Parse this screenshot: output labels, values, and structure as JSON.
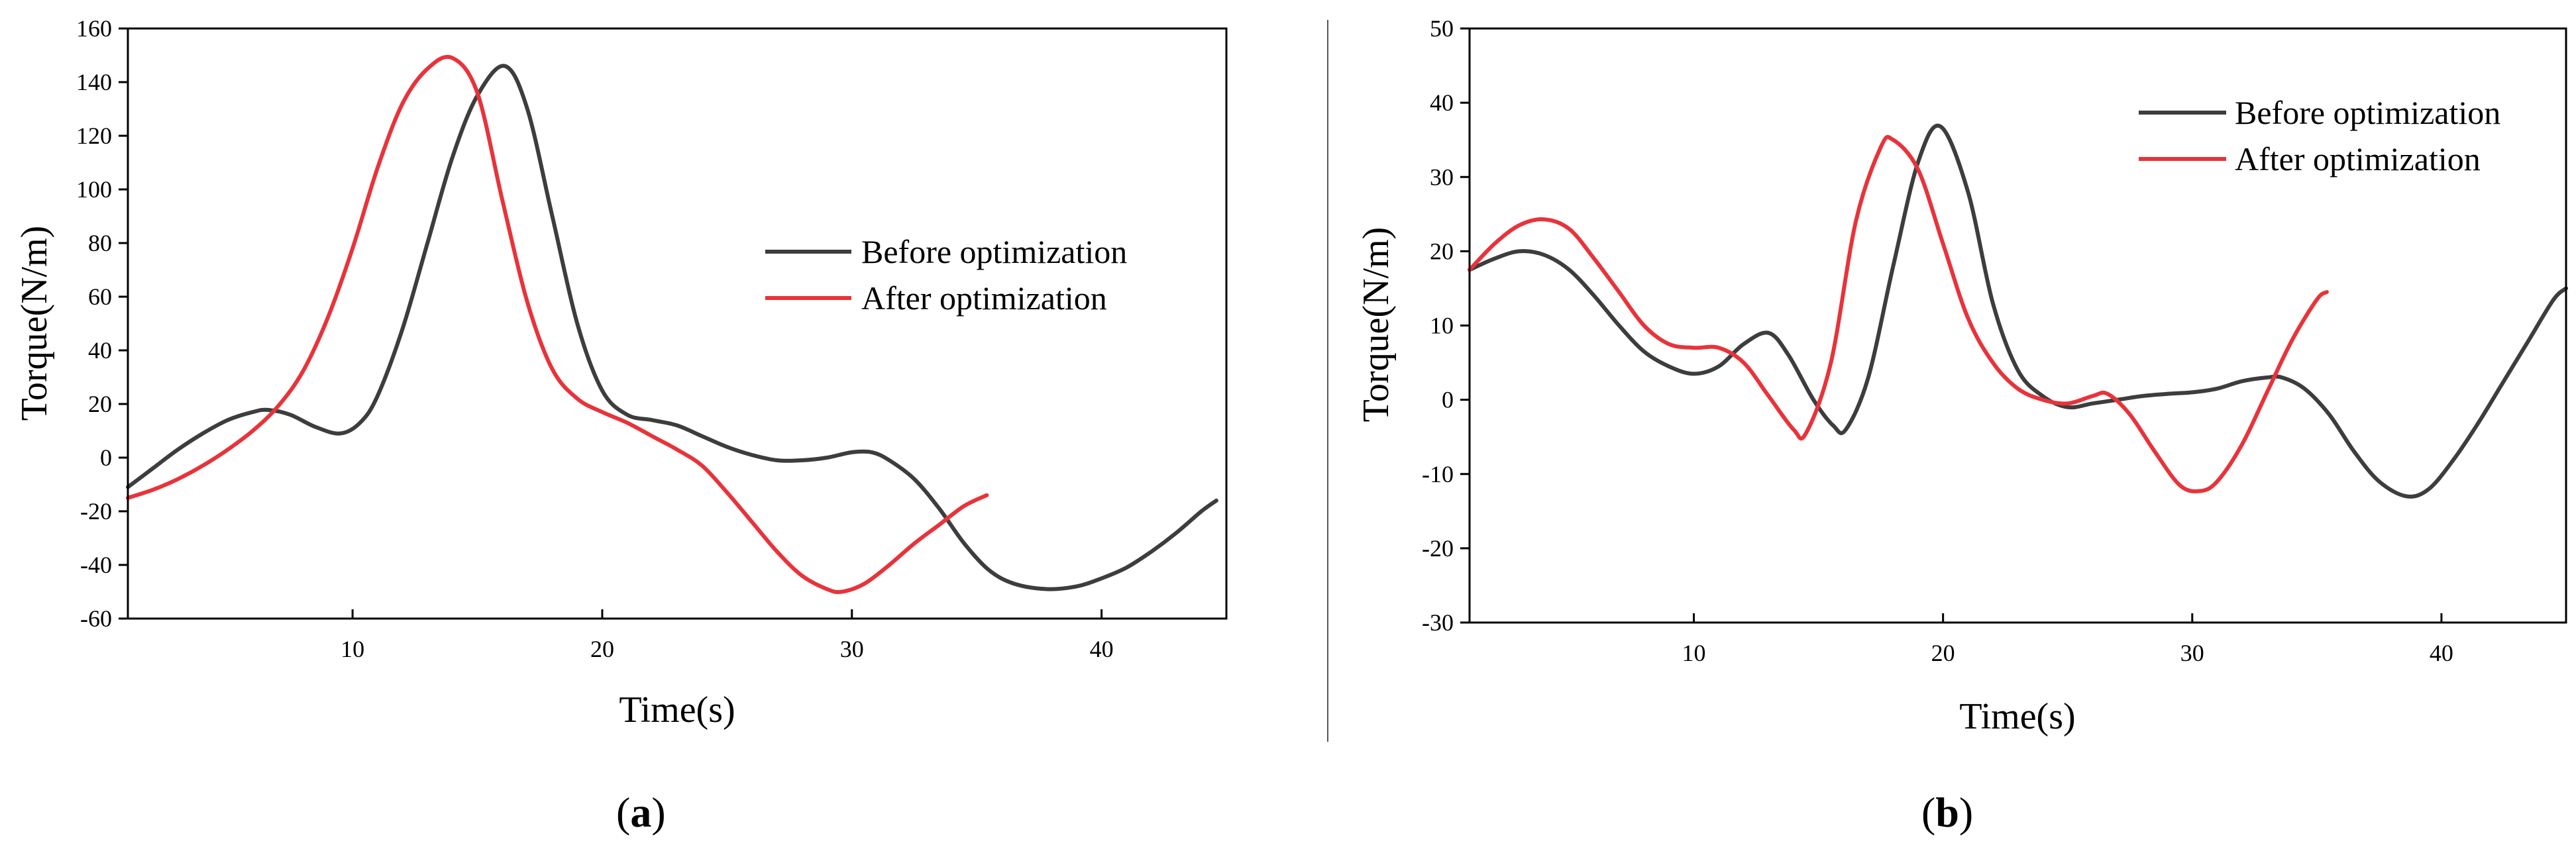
{
  "chart_data": [
    {
      "type": "line",
      "panel_label": "a",
      "xlabel": "Time(s)",
      "ylabel": "Torque(N/m)",
      "xlim": [
        1,
        45
      ],
      "ylim": [
        -60,
        160
      ],
      "xticks": [
        10,
        20,
        30,
        40
      ],
      "yticks": [
        -60,
        -40,
        -20,
        0,
        20,
        40,
        60,
        80,
        100,
        120,
        140,
        160
      ],
      "legend_position": "center-right",
      "series": [
        {
          "name": "Before optimization",
          "color": "#3d3d3d",
          "x": [
            1,
            2,
            3,
            4,
            5,
            6,
            6.6,
            7.5,
            8.5,
            9.5,
            10.3,
            11,
            12,
            13,
            14,
            15,
            16.1,
            17,
            18,
            19,
            20,
            21,
            22,
            23,
            24,
            25,
            26,
            27,
            28,
            29,
            30,
            30.8,
            31.5,
            32.5,
            33.5,
            34.5,
            35.5,
            36.5,
            37.8,
            39,
            40,
            41,
            42,
            43,
            44,
            44.6
          ],
          "y": [
            -11,
            -4,
            3,
            9,
            14,
            17,
            17.8,
            16,
            11.5,
            9,
            13,
            23,
            48,
            80,
            112,
            135,
            146,
            130,
            90,
            50,
            25,
            16,
            14,
            12,
            8,
            4,
            1,
            -1,
            -1,
            0,
            2,
            2,
            -1,
            -8,
            -19,
            -32,
            -42,
            -47,
            -49,
            -48,
            -45,
            -41,
            -35,
            -28,
            -20,
            -16
          ]
        },
        {
          "name": "After optimization",
          "color": "#e8333a",
          "x": [
            1,
            2,
            3,
            4,
            5,
            6,
            7,
            8,
            9,
            10,
            11,
            12,
            13,
            14,
            15,
            16,
            17,
            18,
            19,
            20,
            21,
            22,
            23,
            24,
            25,
            26,
            27,
            28,
            29,
            29.6,
            30.5,
            31.5,
            32.5,
            33.5,
            34.5,
            35.4
          ],
          "y": [
            -15,
            -12,
            -8,
            -3,
            3,
            10,
            19,
            32,
            52,
            78,
            108,
            132,
            145,
            149,
            136,
            96,
            58,
            33,
            22,
            17,
            13,
            8,
            3,
            -3,
            -13,
            -24,
            -35,
            -44,
            -49,
            -50,
            -47,
            -40,
            -32,
            -25,
            -18,
            -14
          ]
        }
      ]
    },
    {
      "type": "line",
      "panel_label": "b",
      "xlabel": "Time(s)",
      "ylabel": "Torque(N/m)",
      "xlim": [
        1,
        45
      ],
      "ylim": [
        -30,
        50
      ],
      "xticks": [
        10,
        20,
        30,
        40
      ],
      "yticks": [
        -30,
        -20,
        -10,
        0,
        10,
        20,
        30,
        40,
        50
      ],
      "legend_position": "top-right",
      "series": [
        {
          "name": "Before optimization",
          "color": "#3d3d3d",
          "x": [
            1,
            2,
            3,
            4,
            5,
            6,
            7,
            8,
            9,
            10,
            11,
            12,
            13,
            13.8,
            14.8,
            15.6,
            16.1,
            17,
            18,
            19,
            19.9,
            21,
            22,
            23,
            24,
            25,
            26,
            27,
            28,
            29,
            30,
            31,
            32,
            33,
            33.6,
            34.5,
            35.5,
            36.5,
            37.5,
            38.6,
            39.5,
            40.5,
            41.5,
            42.5,
            43.5,
            44.5,
            45
          ],
          "y": [
            17.5,
            19,
            20,
            19.5,
            17.5,
            14,
            10,
            6.5,
            4.5,
            3.5,
            4.5,
            7.5,
            9,
            6,
            0,
            -3.5,
            -4,
            3,
            18,
            32,
            36.8,
            28,
            13,
            4,
            0.5,
            -1,
            -0.5,
            0,
            0.5,
            0.8,
            1,
            1.5,
            2.5,
            3,
            3,
            1.5,
            -2,
            -7,
            -11,
            -13,
            -12,
            -8,
            -3,
            2.5,
            8,
            13.5,
            15
          ]
        },
        {
          "name": "After optimization",
          "color": "#e8333a",
          "x": [
            1,
            2,
            3,
            4,
            5,
            6,
            7,
            8,
            9,
            10,
            11,
            12,
            13,
            14,
            14.5,
            15.5,
            16.5,
            17.5,
            18,
            19,
            20,
            21,
            22,
            23,
            24,
            25,
            26,
            26.6,
            27.5,
            28.5,
            29.5,
            30.3,
            31,
            32,
            33,
            34,
            35,
            35.4
          ],
          "y": [
            17.5,
            21,
            23.5,
            24.3,
            23,
            19,
            14.5,
            10,
            7.5,
            7,
            7,
            5,
            0.5,
            -4,
            -4.5,
            5,
            24,
            34,
            35,
            31,
            21,
            11,
            5,
            1.5,
            0,
            -0.5,
            0.5,
            0.8,
            -2,
            -7,
            -11.5,
            -12.3,
            -11,
            -6,
            1,
            8,
            13.5,
            14.5
          ]
        }
      ]
    }
  ]
}
